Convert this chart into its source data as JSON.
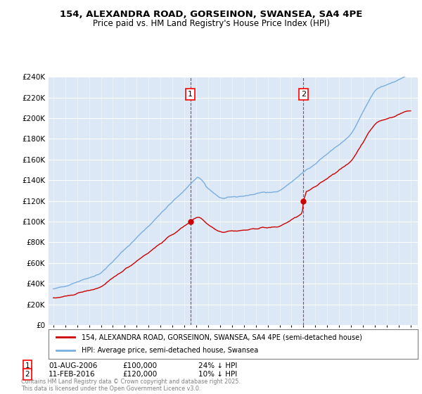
{
  "title1": "154, ALEXANDRA ROAD, GORSEINON, SWANSEA, SA4 4PE",
  "title2": "Price paid vs. HM Land Registry's House Price Index (HPI)",
  "legend_label1": "154, ALEXANDRA ROAD, GORSEINON, SWANSEA, SA4 4PE (semi-detached house)",
  "legend_label2": "HPI: Average price, semi-detached house, Swansea",
  "annotation1": {
    "label": "1",
    "date": "01-AUG-2006",
    "price": "£100,000",
    "pct": "24% ↓ HPI"
  },
  "annotation2": {
    "label": "2",
    "date": "11-FEB-2016",
    "price": "£120,000",
    "pct": "10% ↓ HPI"
  },
  "footnote": "Contains HM Land Registry data © Crown copyright and database right 2025.\nThis data is licensed under the Open Government Licence v3.0.",
  "red_color": "#cc0000",
  "blue_color": "#7aade0",
  "background_color": "#dce8f5",
  "ylim": [
    0,
    240000
  ],
  "ytick_step": 20000
}
